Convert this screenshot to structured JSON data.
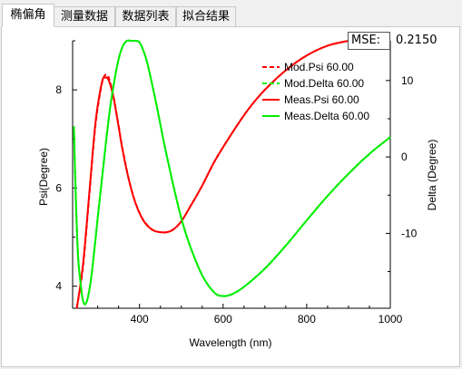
{
  "tabs": [
    {
      "label": "椭偏角",
      "active": true
    },
    {
      "label": "测量数据",
      "active": false
    },
    {
      "label": "数据列表",
      "active": false
    },
    {
      "label": "拟合结果",
      "active": false
    }
  ],
  "mse": {
    "label": "MSE:",
    "value": "0.2150"
  },
  "chart_data": {
    "type": "line",
    "xlabel": "Wavelength (nm)",
    "ylabel_left": "Psi(Degree)",
    "ylabel_right": "Delta (Degree)",
    "xlim": [
      240,
      1000
    ],
    "ylim_left": [
      3.55,
      9.0
    ],
    "ylim_right": [
      -19.8,
      15.2
    ],
    "x_ticks": [
      400,
      600,
      800,
      1000
    ],
    "y_left_ticks": [
      4,
      6,
      8
    ],
    "y_right_ticks": [
      -10,
      0,
      10
    ],
    "colors": {
      "psi": "#ff0000",
      "delta": "#00ee00"
    },
    "legend": {
      "position": "top-right",
      "entries": [
        {
          "label": "Mod.Psi 60.00",
          "color": "#ff0000",
          "dash": true
        },
        {
          "label": "Mod.Delta 60.00",
          "color": "#00ee00",
          "dash": true
        },
        {
          "label": "Meas.Psi 60.00",
          "color": "#ff0000",
          "dash": false
        },
        {
          "label": "Meas.Delta 60.00",
          "color": "#00ee00",
          "dash": false
        }
      ]
    },
    "series": [
      {
        "name": "Meas.Psi 60.00",
        "axis": "left",
        "color": "#ff0000",
        "x": [
          250,
          265,
          280,
          295,
          310,
          318,
          325,
          332,
          340,
          350,
          360,
          375,
          390,
          405,
          420,
          435,
          450,
          465,
          480,
          500,
          520,
          550,
          580,
          620,
          660,
          700,
          750,
          800,
          850,
          900
        ],
        "y": [
          3.55,
          4.45,
          5.9,
          7.35,
          8.15,
          8.25,
          8.22,
          8.05,
          7.75,
          7.25,
          6.75,
          6.15,
          5.7,
          5.4,
          5.22,
          5.13,
          5.1,
          5.1,
          5.15,
          5.32,
          5.6,
          6.05,
          6.55,
          7.1,
          7.6,
          8.0,
          8.4,
          8.7,
          8.9,
          9.0
        ]
      },
      {
        "name": "Mod.Psi 60.00",
        "axis": "left",
        "color": "#ff0000",
        "dashed": true,
        "x": [
          250,
          265,
          280,
          295,
          310,
          318,
          325,
          332,
          340,
          350,
          360,
          375,
          390,
          405,
          420,
          435,
          450,
          465,
          480,
          500,
          520,
          550,
          580,
          620,
          660,
          700,
          750,
          800,
          850,
          900
        ],
        "y": [
          3.55,
          4.4,
          5.85,
          7.3,
          8.12,
          8.3,
          8.28,
          8.08,
          7.77,
          7.27,
          6.77,
          6.16,
          5.71,
          5.41,
          5.23,
          5.13,
          5.1,
          5.1,
          5.15,
          5.32,
          5.6,
          6.05,
          6.55,
          7.1,
          7.6,
          8.0,
          8.4,
          8.7,
          8.9,
          9.0
        ]
      },
      {
        "name": "Meas.Delta 60.00",
        "axis": "right",
        "color": "#00ee00",
        "x": [
          243,
          248,
          253,
          258,
          264,
          270,
          276,
          284,
          292,
          300,
          310,
          320,
          330,
          340,
          350,
          360,
          370,
          380,
          385,
          390,
          400,
          410,
          420,
          440,
          460,
          480,
          500,
          520,
          550,
          580,
          600,
          620,
          650,
          700,
          750,
          800,
          850,
          900,
          950,
          1000
        ],
        "y": [
          4,
          -6,
          -13,
          -16,
          -18.6,
          -19.3,
          -18.5,
          -16,
          -12.2,
          -8,
          -3,
          2,
          6.5,
          10,
          12.8,
          14.5,
          15.5,
          15.8,
          15.8,
          15.7,
          15,
          13.8,
          12,
          7,
          1.5,
          -3.5,
          -8,
          -11.5,
          -15.5,
          -17.8,
          -18.2,
          -18,
          -17,
          -14.6,
          -11.6,
          -8.3,
          -5.1,
          -2.2,
          0.4,
          2.6
        ]
      },
      {
        "name": "Mod.Delta 60.00",
        "axis": "right",
        "color": "#00ee00",
        "dashed": true,
        "x": [
          243,
          248,
          253,
          258,
          264,
          270,
          276,
          284,
          292,
          300,
          310,
          320,
          330,
          340,
          350,
          360,
          370,
          380,
          385,
          390,
          400,
          410,
          420,
          440,
          460,
          480,
          500,
          520,
          550,
          580,
          600,
          620,
          650,
          700,
          750,
          800,
          850,
          900,
          950,
          1000
        ],
        "y": [
          4,
          -6,
          -13,
          -16,
          -18.6,
          -19.3,
          -18.5,
          -16,
          -12.2,
          -8,
          -3,
          2,
          6.5,
          10,
          12.8,
          14.5,
          15.5,
          15.8,
          15.8,
          15.7,
          15,
          13.8,
          12,
          7,
          1.5,
          -3.5,
          -8,
          -11.5,
          -15.5,
          -17.8,
          -18.2,
          -18,
          -17,
          -14.6,
          -11.6,
          -8.3,
          -5.1,
          -2.2,
          0.4,
          2.6
        ]
      }
    ]
  }
}
